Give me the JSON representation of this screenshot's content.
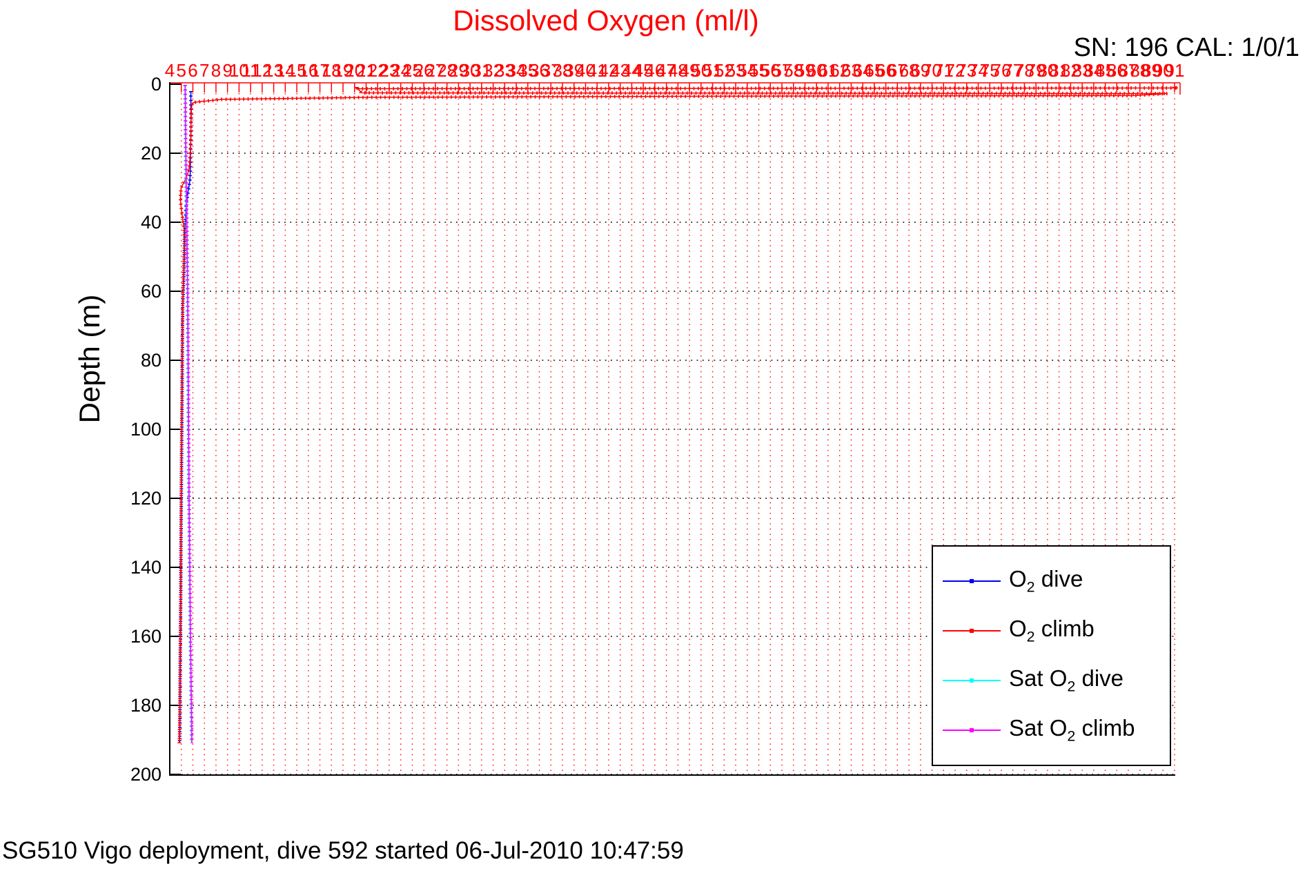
{
  "figure": {
    "title": "Dissolved Oxygen (ml/l)",
    "sn_cal": "SN: 196  CAL: 1/0/1",
    "y_axis_label": "Depth (m)",
    "caption": "SG510 Vigo deployment, dive 592 started 06-Jul-2010 10:47:59",
    "colors": {
      "background": "#ffffff",
      "title": "#ff0000",
      "top_axis": "#ff0000",
      "left_axis": "#000000",
      "vertical_grid": "#ff0000",
      "horizontal_grid": "#000000"
    }
  },
  "chart_data": {
    "type": "line",
    "title": "Dissolved Oxygen (ml/l)",
    "annotation": "SN: 196  CAL: 1/0/1",
    "caption": "SG510 Vigo deployment, dive 592 started 06-Jul-2010 10:47:59",
    "x_axis": {
      "label": "Dissolved Oxygen (ml/l)",
      "side": "top",
      "min": 4,
      "max": 91,
      "tick_step": 1,
      "tick_color": "#ff0000",
      "grid": "dotted vertical red"
    },
    "y_axis": {
      "label": "Depth (m)",
      "min": 0,
      "max": 200,
      "tick_step": 20,
      "inverted": true,
      "tick_color": "#000000",
      "grid": "dotted horizontal black"
    },
    "legend_position": "lower right",
    "point_format": [
      "depth_m",
      "o2_ml_per_l"
    ],
    "series": [
      {
        "name": "O2 dive",
        "color": "#0000ee",
        "points": [
          [
            2,
            5.82
          ],
          [
            5,
            5.83
          ],
          [
            10,
            5.84
          ],
          [
            15,
            5.83
          ],
          [
            20,
            5.8
          ],
          [
            25,
            5.78
          ],
          [
            28,
            5.74
          ],
          [
            32,
            5.55
          ],
          [
            35,
            5.42
          ],
          [
            38,
            5.38
          ],
          [
            42,
            5.32
          ],
          [
            47,
            5.28
          ],
          [
            55,
            5.22
          ],
          [
            65,
            5.12
          ],
          [
            75,
            5.1
          ],
          [
            90,
            5.07
          ],
          [
            110,
            5.02
          ],
          [
            130,
            4.98
          ],
          [
            150,
            4.95
          ],
          [
            170,
            4.9
          ],
          [
            185,
            4.87
          ],
          [
            191,
            4.85
          ]
        ]
      },
      {
        "name": "O2 climb",
        "color": "#ff0000",
        "points": [
          [
            191,
            4.83
          ],
          [
            185,
            4.86
          ],
          [
            170,
            4.89
          ],
          [
            150,
            4.94
          ],
          [
            130,
            4.97
          ],
          [
            110,
            5.01
          ],
          [
            90,
            5.06
          ],
          [
            75,
            5.09
          ],
          [
            65,
            5.11
          ],
          [
            55,
            5.2
          ],
          [
            47,
            5.26
          ],
          [
            42,
            5.24
          ],
          [
            38,
            5.08
          ],
          [
            35,
            4.96
          ],
          [
            33,
            4.92
          ],
          [
            30,
            4.98
          ],
          [
            28,
            5.3
          ],
          [
            26,
            5.55
          ],
          [
            24,
            5.7
          ],
          [
            20,
            5.78
          ],
          [
            15,
            5.82
          ],
          [
            10,
            5.85
          ],
          [
            7,
            5.87
          ],
          [
            5.5,
            5.95
          ],
          [
            5.2,
            6.25
          ],
          [
            4.4,
            8.5
          ],
          [
            3.8,
            21.5
          ],
          [
            3.5,
            50
          ],
          [
            3.3,
            87.5
          ],
          [
            2.7,
            90.4
          ],
          [
            2.5,
            20.6
          ],
          [
            1.3,
            20.3
          ],
          [
            1.1,
            91.3
          ],
          [
            0.9,
            90.8
          ]
        ]
      },
      {
        "name": "Sat O2 dive",
        "color": "#00ffff",
        "points": [
          [
            0.3,
            5.3
          ],
          [
            5,
            5.32
          ],
          [
            10,
            5.33
          ],
          [
            20,
            5.36
          ],
          [
            30,
            5.4
          ],
          [
            40,
            5.45
          ],
          [
            50,
            5.48
          ],
          [
            60,
            5.52
          ],
          [
            80,
            5.56
          ],
          [
            100,
            5.6
          ],
          [
            120,
            5.64
          ],
          [
            140,
            5.7
          ],
          [
            160,
            5.76
          ],
          [
            175,
            5.82
          ],
          [
            185,
            5.86
          ],
          [
            191,
            5.88
          ]
        ]
      },
      {
        "name": "Sat O2 climb",
        "color": "#ff00ff",
        "points": [
          [
            0.2,
            5.34
          ],
          [
            5,
            5.36
          ],
          [
            10,
            5.37
          ],
          [
            20,
            5.4
          ],
          [
            30,
            5.44
          ],
          [
            40,
            5.49
          ],
          [
            50,
            5.52
          ],
          [
            60,
            5.56
          ],
          [
            80,
            5.6
          ],
          [
            100,
            5.64
          ],
          [
            120,
            5.68
          ],
          [
            140,
            5.74
          ],
          [
            160,
            5.8
          ],
          [
            175,
            5.86
          ],
          [
            185,
            5.9
          ],
          [
            191,
            5.92
          ]
        ]
      }
    ]
  },
  "legend": {
    "items": [
      {
        "pre": "O",
        "sub": "2",
        "post": " dive",
        "color": "#0000ee"
      },
      {
        "pre": "O",
        "sub": "2",
        "post": " climb",
        "color": "#ff0000"
      },
      {
        "pre": "Sat O",
        "sub": "2",
        "post": " dive",
        "color": "#00ffff"
      },
      {
        "pre": "Sat O",
        "sub": "2",
        "post": " climb",
        "color": "#ff00ff"
      }
    ]
  }
}
